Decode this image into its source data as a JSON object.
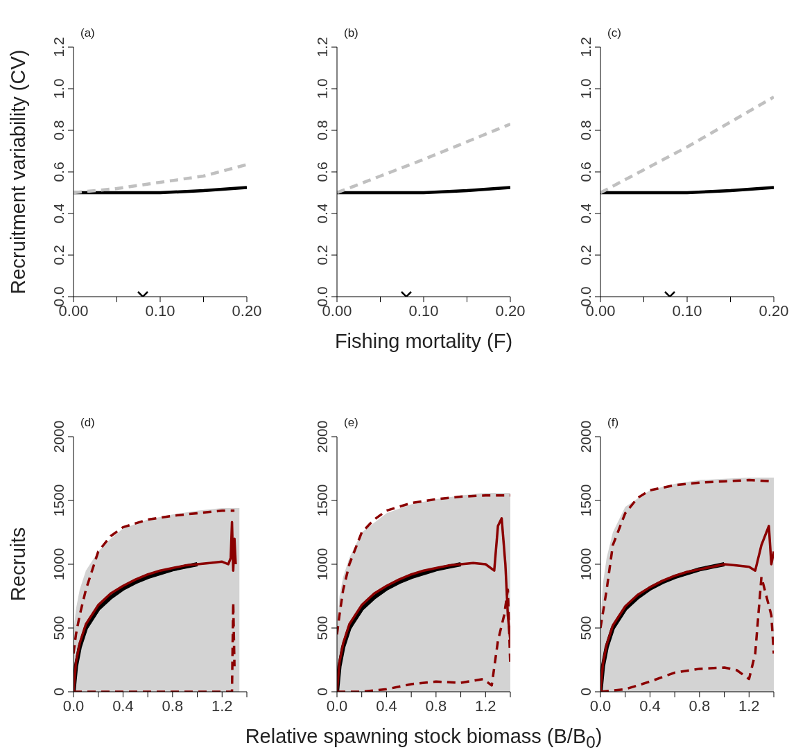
{
  "chart_data": [
    {
      "type": "line",
      "title": "(a)",
      "ylabel": "Recruitment variability (CV)",
      "xlim": [
        0,
        0.2
      ],
      "xticks": [
        {
          "value": 0,
          "label": "0.00"
        },
        {
          "value": 0.05,
          "label": null
        },
        {
          "value": 0.1,
          "label": "0.10"
        },
        {
          "value": 0.15,
          "label": null
        },
        {
          "value": 0.2,
          "label": "0.20"
        }
      ],
      "ylim": [
        0,
        1.2
      ],
      "yticks": [
        {
          "value": 0,
          "label": "0.0"
        },
        {
          "value": 0.2,
          "label": "0.2"
        },
        {
          "value": 0.4,
          "label": "0.4"
        },
        {
          "value": 0.6,
          "label": "0.6"
        },
        {
          "value": 0.8,
          "label": "0.8"
        },
        {
          "value": 1,
          "label": "1.0"
        },
        {
          "value": 1.2,
          "label": "1.2"
        }
      ],
      "x": [
        0,
        0.05,
        0.1,
        0.15,
        0.2
      ],
      "grid": false,
      "legend": false,
      "series": [
        {
          "color": "#000000",
          "values": [
            0.5,
            0.5,
            0.5,
            0.51,
            0.525
          ],
          "line_style": "solid"
        },
        {
          "color": "#c0c0c0",
          "values": [
            0.5,
            0.52,
            0.55,
            0.58,
            0.635
          ],
          "line_style": "dashed"
        },
        {
          "type": "scatter",
          "color": "#000000",
          "x": [
            0.08
          ],
          "values": [
            0
          ],
          "marker": "cross"
        }
      ]
    },
    {
      "type": "line",
      "title": "(b)",
      "xlabel": "Fishing mortality (F)",
      "xlim": [
        0,
        0.2
      ],
      "xticks": [
        {
          "value": 0,
          "label": "0.00"
        },
        {
          "value": 0.05,
          "label": null
        },
        {
          "value": 0.1,
          "label": "0.10"
        },
        {
          "value": 0.15,
          "label": null
        },
        {
          "value": 0.2,
          "label": "0.20"
        }
      ],
      "ylim": [
        0,
        1.2
      ],
      "yticks": [
        {
          "value": 0,
          "label": "0.0"
        },
        {
          "value": 0.2,
          "label": "0.2"
        },
        {
          "value": 0.4,
          "label": "0.4"
        },
        {
          "value": 0.6,
          "label": "0.6"
        },
        {
          "value": 0.8,
          "label": "0.8"
        },
        {
          "value": 1,
          "label": "1.0"
        },
        {
          "value": 1.2,
          "label": "1.2"
        }
      ],
      "x": [
        0,
        0.05,
        0.1,
        0.15,
        0.2
      ],
      "grid": false,
      "legend": false,
      "series": [
        {
          "color": "#000000",
          "values": [
            0.5,
            0.5,
            0.5,
            0.51,
            0.525
          ],
          "line_style": "solid"
        },
        {
          "color": "#c0c0c0",
          "values": [
            0.5,
            0.58,
            0.66,
            0.745,
            0.83
          ],
          "line_style": "dashed"
        },
        {
          "type": "scatter",
          "color": "#000000",
          "x": [
            0.08
          ],
          "values": [
            0
          ],
          "marker": "cross"
        }
      ]
    },
    {
      "type": "line",
      "title": "(c)",
      "xlim": [
        0,
        0.2
      ],
      "xticks": [
        {
          "value": 0,
          "label": "0.00"
        },
        {
          "value": 0.05,
          "label": null
        },
        {
          "value": 0.1,
          "label": "0.10"
        },
        {
          "value": 0.15,
          "label": null
        },
        {
          "value": 0.2,
          "label": "0.20"
        }
      ],
      "ylim": [
        0,
        1.2
      ],
      "yticks": [
        {
          "value": 0,
          "label": "0.0"
        },
        {
          "value": 0.2,
          "label": "0.2"
        },
        {
          "value": 0.4,
          "label": "0.4"
        },
        {
          "value": 0.6,
          "label": "0.6"
        },
        {
          "value": 0.8,
          "label": "0.8"
        },
        {
          "value": 1,
          "label": "1.0"
        },
        {
          "value": 1.2,
          "label": "1.2"
        }
      ],
      "x": [
        0,
        0.05,
        0.1,
        0.15,
        0.2
      ],
      "grid": false,
      "legend": false,
      "series": [
        {
          "color": "#000000",
          "values": [
            0.5,
            0.5,
            0.5,
            0.51,
            0.525
          ],
          "line_style": "solid"
        },
        {
          "color": "#c0c0c0",
          "values": [
            0.5,
            0.61,
            0.72,
            0.84,
            0.96
          ],
          "line_style": "dashed"
        },
        {
          "type": "scatter",
          "color": "#000000",
          "x": [
            0.08
          ],
          "values": [
            0
          ],
          "marker": "cross"
        }
      ]
    },
    {
      "type": "line",
      "title": "(d)",
      "ylabel": "Recruits",
      "xlim": [
        0,
        1.4
      ],
      "xticks": [
        {
          "value": 0,
          "label": "0.0"
        },
        {
          "value": 0.2,
          "label": null
        },
        {
          "value": 0.4,
          "label": "0.4"
        },
        {
          "value": 0.6,
          "label": null
        },
        {
          "value": 0.8,
          "label": "0.8"
        },
        {
          "value": 1,
          "label": null
        },
        {
          "value": 1.2,
          "label": "1.2"
        },
        {
          "value": 1.4,
          "label": null
        }
      ],
      "ylim": [
        0,
        2000
      ],
      "yticks": [
        0,
        500,
        1000,
        1500,
        2000
      ],
      "grid": false,
      "legend": false,
      "series": [
        {
          "type": "area",
          "color": "#d3d3d3",
          "x": [
            0,
            0.02,
            0.05,
            0.1,
            0.2,
            0.3,
            0.4,
            0.6,
            0.8,
            1.0,
            1.2,
            1.34
          ],
          "values": [
            470,
            650,
            800,
            950,
            1100,
            1200,
            1280,
            1350,
            1390,
            1420,
            1440,
            1440
          ]
        },
        {
          "color": "#000000",
          "line_style": "solid",
          "x": [
            0,
            0.02,
            0.05,
            0.1,
            0.2,
            0.3,
            0.4,
            0.5,
            0.6,
            0.7,
            0.8,
            0.9,
            1.0
          ],
          "values": [
            0,
            200,
            350,
            500,
            650,
            740,
            810,
            860,
            900,
            930,
            960,
            980,
            1000
          ]
        },
        {
          "color": "#8b0000",
          "line_style": "solid",
          "x": [
            0,
            0.02,
            0.05,
            0.1,
            0.2,
            0.3,
            0.4,
            0.5,
            0.6,
            0.7,
            0.8,
            0.9,
            1.0,
            1.1,
            1.2,
            1.25,
            1.27,
            1.28,
            1.29,
            1.3,
            1.31
          ],
          "values": [
            0,
            230,
            380,
            530,
            680,
            770,
            830,
            880,
            920,
            950,
            970,
            990,
            1000,
            1010,
            1020,
            1000,
            1050,
            1330,
            950,
            1200,
            1000
          ]
        },
        {
          "color": "#8b0000",
          "line_style": "dashed",
          "x": [
            0,
            0.02,
            0.05,
            0.1,
            0.2,
            0.3,
            0.4,
            0.6,
            0.8,
            1.0,
            1.2,
            1.3
          ],
          "values": [
            300,
            450,
            600,
            800,
            1100,
            1220,
            1290,
            1350,
            1380,
            1400,
            1420,
            1420
          ]
        },
        {
          "color": "#8b0000",
          "line_style": "dashed",
          "x": [
            0,
            0.4,
            0.8,
            1.28,
            1.29,
            1.3
          ],
          "values": [
            0,
            0,
            0,
            0,
            700,
            200
          ]
        }
      ]
    },
    {
      "type": "line",
      "title": "(e)",
      "xlabel": "Relative spawning stock biomass (B/B$_{0}$)",
      "xlim": [
        0,
        1.4
      ],
      "xticks": [
        {
          "value": 0,
          "label": "0.0"
        },
        {
          "value": 0.2,
          "label": null
        },
        {
          "value": 0.4,
          "label": "0.4"
        },
        {
          "value": 0.6,
          "label": null
        },
        {
          "value": 0.8,
          "label": "0.8"
        },
        {
          "value": 1,
          "label": null
        },
        {
          "value": 1.2,
          "label": "1.2"
        },
        {
          "value": 1.4,
          "label": null
        }
      ],
      "ylim": [
        0,
        2000
      ],
      "yticks": [
        0,
        500,
        1000,
        1500,
        2000
      ],
      "grid": false,
      "legend": false,
      "series": [
        {
          "type": "area",
          "color": "#d3d3d3",
          "x": [
            0,
            0.02,
            0.05,
            0.1,
            0.2,
            0.4,
            0.6,
            0.8,
            1.0,
            1.2,
            1.4
          ],
          "values": [
            500,
            750,
            900,
            1050,
            1250,
            1400,
            1470,
            1510,
            1540,
            1560,
            1560
          ]
        },
        {
          "color": "#000000",
          "line_style": "solid",
          "x": [
            0,
            0.02,
            0.05,
            0.1,
            0.2,
            0.3,
            0.4,
            0.5,
            0.6,
            0.7,
            0.8,
            0.9,
            1.0
          ],
          "values": [
            0,
            200,
            350,
            500,
            650,
            740,
            810,
            860,
            900,
            930,
            960,
            980,
            1000
          ]
        },
        {
          "color": "#8b0000",
          "line_style": "solid",
          "x": [
            0,
            0.02,
            0.05,
            0.1,
            0.2,
            0.3,
            0.4,
            0.5,
            0.6,
            0.7,
            0.8,
            0.9,
            1.0,
            1.1,
            1.2,
            1.27,
            1.3,
            1.33,
            1.36,
            1.38,
            1.4
          ],
          "values": [
            0,
            230,
            380,
            530,
            680,
            770,
            830,
            880,
            920,
            950,
            970,
            990,
            1000,
            1010,
            1000,
            950,
            1300,
            1360,
            1000,
            600,
            400
          ]
        },
        {
          "color": "#8b0000",
          "line_style": "dashed",
          "x": [
            0,
            0.02,
            0.05,
            0.1,
            0.2,
            0.3,
            0.4,
            0.6,
            0.8,
            1.0,
            1.2,
            1.4
          ],
          "values": [
            450,
            600,
            800,
            1000,
            1250,
            1350,
            1420,
            1480,
            1510,
            1530,
            1540,
            1540
          ]
        },
        {
          "color": "#8b0000",
          "line_style": "dashed",
          "x": [
            0,
            0.2,
            0.4,
            0.6,
            0.8,
            1.0,
            1.18,
            1.25,
            1.3,
            1.35,
            1.38,
            1.4
          ],
          "values": [
            0,
            0,
            20,
            60,
            80,
            70,
            100,
            50,
            400,
            600,
            800,
            200
          ]
        }
      ]
    },
    {
      "type": "line",
      "title": "(f)",
      "xlim": [
        0,
        1.4
      ],
      "xticks": [
        {
          "value": 0,
          "label": "0.0"
        },
        {
          "value": 0.2,
          "label": null
        },
        {
          "value": 0.4,
          "label": "0.4"
        },
        {
          "value": 0.6,
          "label": null
        },
        {
          "value": 0.8,
          "label": "0.8"
        },
        {
          "value": 1,
          "label": null
        },
        {
          "value": 1.2,
          "label": "1.2"
        },
        {
          "value": 1.4,
          "label": null
        }
      ],
      "ylim": [
        0,
        2000
      ],
      "yticks": [
        0,
        500,
        1000,
        1500,
        2000
      ],
      "grid": false,
      "legend": false,
      "series": [
        {
          "type": "area",
          "color": "#d3d3d3",
          "x": [
            0,
            0.02,
            0.05,
            0.1,
            0.2,
            0.4,
            0.6,
            0.8,
            1.0,
            1.2,
            1.4
          ],
          "values": [
            550,
            850,
            1050,
            1250,
            1450,
            1580,
            1630,
            1660,
            1670,
            1680,
            1680
          ]
        },
        {
          "color": "#000000",
          "line_style": "solid",
          "x": [
            0,
            0.02,
            0.05,
            0.1,
            0.2,
            0.3,
            0.4,
            0.5,
            0.6,
            0.7,
            0.8,
            0.9,
            1.0
          ],
          "values": [
            0,
            200,
            350,
            500,
            650,
            740,
            810,
            860,
            900,
            930,
            960,
            980,
            1000
          ]
        },
        {
          "color": "#8b0000",
          "line_style": "solid",
          "x": [
            0,
            0.02,
            0.05,
            0.1,
            0.2,
            0.3,
            0.4,
            0.5,
            0.6,
            0.7,
            0.8,
            0.9,
            1.0,
            1.1,
            1.2,
            1.25,
            1.3,
            1.36,
            1.38,
            1.4
          ],
          "values": [
            0,
            220,
            370,
            520,
            670,
            760,
            820,
            870,
            910,
            940,
            960,
            980,
            1000,
            990,
            980,
            950,
            1150,
            1300,
            1000,
            1100
          ]
        },
        {
          "color": "#8b0000",
          "line_style": "dashed",
          "x": [
            0,
            0.05,
            0.1,
            0.2,
            0.3,
            0.4,
            0.6,
            0.8,
            1.0,
            1.2,
            1.4
          ],
          "values": [
            500,
            800,
            1150,
            1400,
            1520,
            1580,
            1620,
            1640,
            1650,
            1660,
            1650
          ]
        },
        {
          "color": "#8b0000",
          "line_style": "dashed",
          "x": [
            0,
            0.2,
            0.4,
            0.6,
            0.8,
            1.0,
            1.1,
            1.2,
            1.25,
            1.3,
            1.38,
            1.4
          ],
          "values": [
            0,
            20,
            80,
            150,
            180,
            190,
            170,
            100,
            300,
            900,
            600,
            300
          ]
        }
      ]
    }
  ]
}
